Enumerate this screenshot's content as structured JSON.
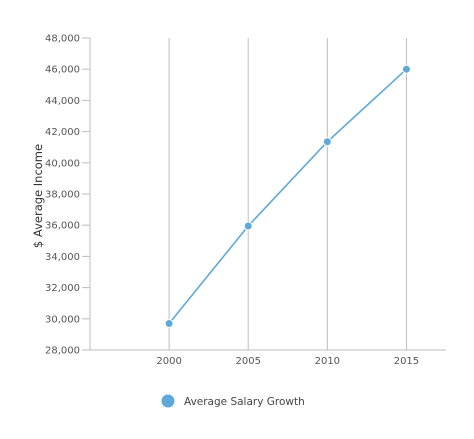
{
  "chart_data": {
    "type": "line",
    "title": "",
    "xlabel": "",
    "ylabel": "$ Average Income",
    "x": [
      2000,
      2005,
      2010,
      2015
    ],
    "x_tick_labels": [
      "2000",
      "2005",
      "2010",
      "2015"
    ],
    "y_ticks": [
      28000,
      30000,
      32000,
      34000,
      36000,
      38000,
      40000,
      42000,
      44000,
      46000,
      48000
    ],
    "y_tick_labels": [
      "28,000",
      "30,000",
      "32,000",
      "34,000",
      "36,000",
      "38,000",
      "40,000",
      "42,000",
      "44,000",
      "46,000",
      "48,000"
    ],
    "ylim": [
      28000,
      48000
    ],
    "xlim": [
      1995,
      2017.5
    ],
    "grid": "vertical at x ticks; horizontal ticks on left axis",
    "legend_position": "bottom",
    "series": [
      {
        "name": "Average Salary Growth",
        "color": "#5ea9d8",
        "values": [
          29700,
          35950,
          41350,
          46000
        ]
      }
    ]
  }
}
